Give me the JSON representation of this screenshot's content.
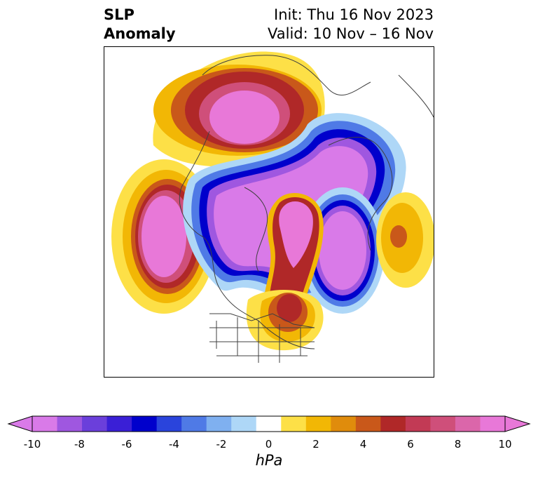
{
  "header": {
    "left_line1": "SLP",
    "left_line2": "Anomaly",
    "right_line1": "Init: Thu 16 Nov 2023",
    "right_line2": "Valid: 10 Nov – 16 Nov"
  },
  "colorbar": {
    "unit_label": "hPa",
    "tick_labels": [
      "-10",
      "-8",
      "-6",
      "-4",
      "-2",
      "0",
      "2",
      "4",
      "6",
      "8",
      "10"
    ],
    "colors": [
      "#d97ae8",
      "#9f57e0",
      "#6b3fdb",
      "#3a1fd6",
      "#0000cc",
      "#2a44dc",
      "#4f7ae6",
      "#7fb0f0",
      "#aed7f7",
      "#ffffff",
      "#fde047",
      "#f2b705",
      "#e08c0c",
      "#c9581a",
      "#b02828",
      "#c23a55",
      "#cf4f7a",
      "#db66aa",
      "#e878d8"
    ]
  },
  "map": {
    "projection": "polar stereographic",
    "field": "sea level pressure anomaly"
  }
}
